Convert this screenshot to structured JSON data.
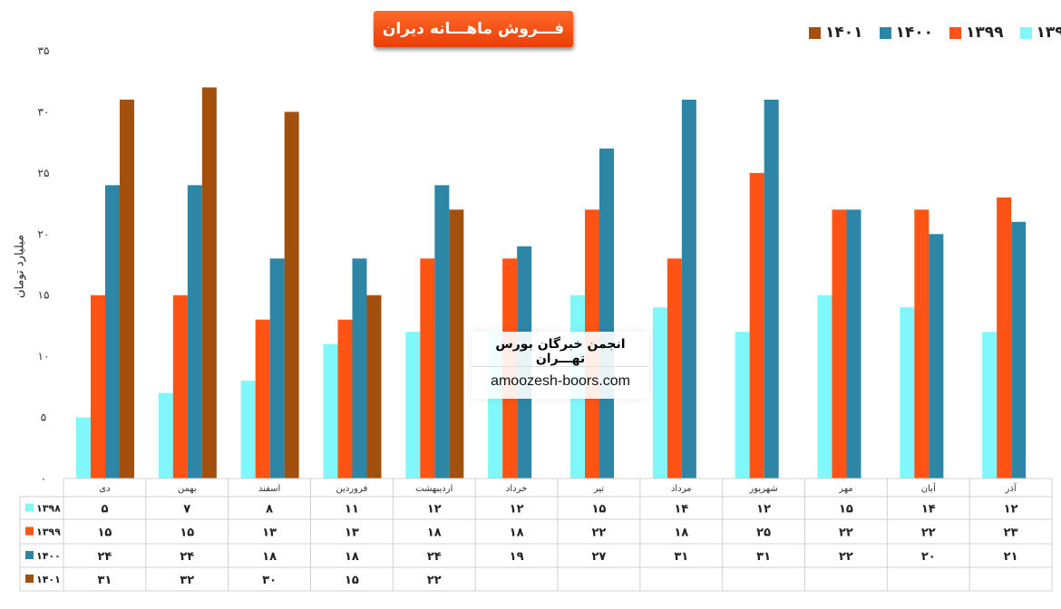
{
  "chart_data": {
    "type": "bar",
    "title": "فـــروش ماهـــانه دیران",
    "ylabel": "میلیارد تومان",
    "ylim": [
      0,
      35
    ],
    "yticks": [
      0,
      5,
      10,
      15,
      20,
      25,
      30,
      35
    ],
    "ytick_labels": [
      "٠",
      "۵",
      "١٠",
      "١۵",
      "٢٠",
      "٢۵",
      "٣٠",
      "٣۵"
    ],
    "grid": false,
    "legend_position": "top-right",
    "categories": [
      "دی",
      "بهمن",
      "اسفند",
      "فروردین",
      "اردیبهشت",
      "خرداد",
      "تیر",
      "مرداد",
      "شهریور",
      "مهر",
      "آبان",
      "آذر"
    ],
    "series": [
      {
        "name": "۱۳۹۸",
        "color": "#7ff7fb",
        "values": [
          5,
          7,
          8,
          11,
          12,
          12,
          15,
          14,
          12,
          15,
          14,
          12
        ],
        "labels": [
          "۵",
          "۷",
          "۸",
          "۱۱",
          "۱۲",
          "۱۲",
          "۱۵",
          "۱۴",
          "۱۲",
          "۱۵",
          "۱۴",
          "۱۲"
        ]
      },
      {
        "name": "۱۳۹۹",
        "color": "#fd5314",
        "values": [
          15,
          15,
          13,
          13,
          18,
          18,
          22,
          18,
          25,
          22,
          22,
          23
        ],
        "labels": [
          "۱۵",
          "۱۵",
          "۱۳",
          "۱۳",
          "۱۸",
          "۱۸",
          "۲۲",
          "۱۸",
          "۲۵",
          "۲۲",
          "۲۲",
          "۲۳"
        ]
      },
      {
        "name": "۱۴۰۰",
        "color": "#2e86a6",
        "values": [
          24,
          24,
          18,
          18,
          24,
          19,
          27,
          31,
          31,
          22,
          20,
          21
        ],
        "labels": [
          "۲۴",
          "۲۴",
          "۱۸",
          "۱۸",
          "۲۴",
          "۱۹",
          "۲۷",
          "۳۱",
          "۳۱",
          "۲۲",
          "۲۰",
          "۲۱"
        ]
      },
      {
        "name": "۱۴۰۱",
        "color": "#a3500f",
        "values": [
          31,
          32,
          30,
          15,
          22,
          null,
          null,
          null,
          null,
          null,
          null,
          null
        ],
        "labels": [
          "۳۱",
          "۳۲",
          "۳۰",
          "۱۵",
          "۲۲",
          "",
          "",
          "",
          "",
          "",
          "",
          ""
        ]
      }
    ]
  },
  "watermark": {
    "title": "انجمن خبرگان بورس تهـــران",
    "url": "amoozesh-boors.com"
  }
}
